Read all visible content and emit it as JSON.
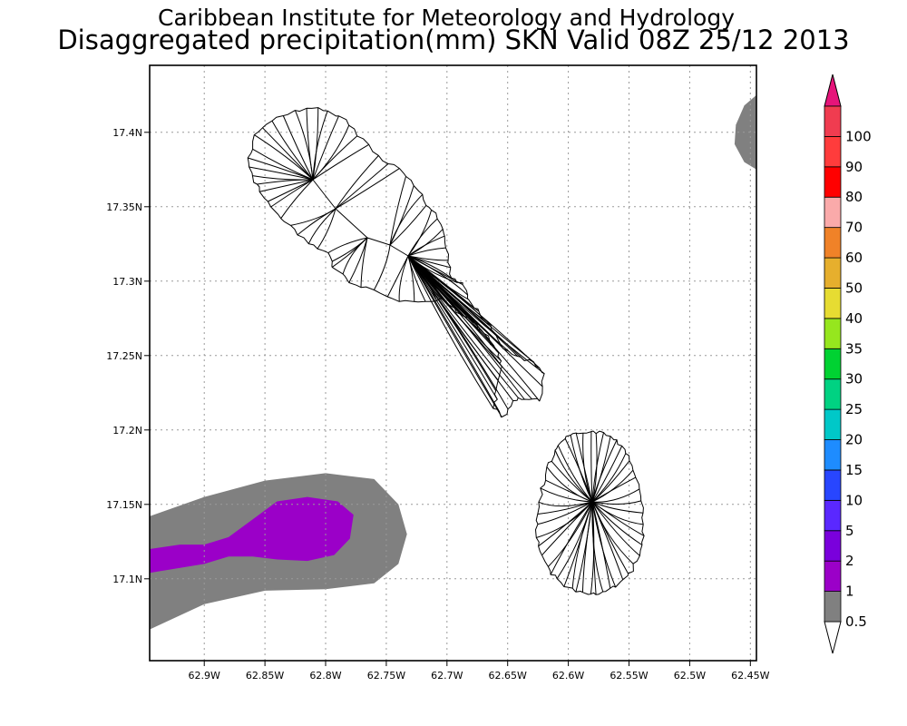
{
  "header": {
    "institute": "Caribbean Institute for Meteorology and Hydrology",
    "product": "Disaggregated precipitation(mm) SKN Valid 08Z 25/12 2013"
  },
  "map": {
    "lon_range": [
      -62.945,
      -62.445
    ],
    "lat_range": [
      17.045,
      17.445
    ],
    "lon_ticks": [
      {
        "value": -62.9,
        "label": "62.9W"
      },
      {
        "value": -62.85,
        "label": "62.85W"
      },
      {
        "value": -62.8,
        "label": "62.8W"
      },
      {
        "value": -62.75,
        "label": "62.75W"
      },
      {
        "value": -62.7,
        "label": "62.7W"
      },
      {
        "value": -62.65,
        "label": "62.65W"
      },
      {
        "value": -62.6,
        "label": "62.6W"
      },
      {
        "value": -62.55,
        "label": "62.55W"
      },
      {
        "value": -62.5,
        "label": "62.5W"
      },
      {
        "value": -62.45,
        "label": "62.45W"
      }
    ],
    "lat_ticks": [
      {
        "value": 17.1,
        "label": "17.1N"
      },
      {
        "value": 17.15,
        "label": "17.15N"
      },
      {
        "value": 17.2,
        "label": "17.2N"
      },
      {
        "value": 17.25,
        "label": "17.25N"
      },
      {
        "value": 17.3,
        "label": "17.3N"
      },
      {
        "value": 17.35,
        "label": "17.35N"
      },
      {
        "value": 17.4,
        "label": "17.4N"
      }
    ],
    "grid": true,
    "islands": [
      {
        "id": "st-kitts",
        "center": [
          -62.755,
          17.335
        ]
      },
      {
        "id": "nevis",
        "center": [
          -62.595,
          17.152
        ]
      }
    ],
    "precip_areas": [
      {
        "band": "0.5-1",
        "color": "#808080",
        "outline": [
          [
            -62.945,
            17.142
          ],
          [
            -62.9,
            17.155
          ],
          [
            -62.85,
            17.166
          ],
          [
            -62.8,
            17.171
          ],
          [
            -62.76,
            17.167
          ],
          [
            -62.74,
            17.15
          ],
          [
            -62.733,
            17.13
          ],
          [
            -62.74,
            17.11
          ],
          [
            -62.76,
            17.097
          ],
          [
            -62.8,
            17.093
          ],
          [
            -62.85,
            17.092
          ],
          [
            -62.9,
            17.083
          ],
          [
            -62.945,
            17.066
          ]
        ]
      },
      {
        "band": "0.5-1",
        "color": "#808080",
        "outline": [
          [
            -62.445,
            17.425
          ],
          [
            -62.455,
            17.418
          ],
          [
            -62.462,
            17.405
          ],
          [
            -62.463,
            17.392
          ],
          [
            -62.455,
            17.38
          ],
          [
            -62.445,
            17.375
          ]
        ]
      },
      {
        "band": "1-2",
        "color": "#9b00c8",
        "outline": [
          [
            -62.945,
            17.12
          ],
          [
            -62.92,
            17.123
          ],
          [
            -62.9,
            17.123
          ],
          [
            -62.88,
            17.128
          ],
          [
            -62.86,
            17.14
          ],
          [
            -62.84,
            17.152
          ],
          [
            -62.815,
            17.155
          ],
          [
            -62.79,
            17.152
          ],
          [
            -62.777,
            17.143
          ],
          [
            -62.78,
            17.127
          ],
          [
            -62.793,
            17.116
          ],
          [
            -62.815,
            17.112
          ],
          [
            -62.84,
            17.113
          ],
          [
            -62.86,
            17.115
          ],
          [
            -62.88,
            17.115
          ],
          [
            -62.9,
            17.11
          ],
          [
            -62.945,
            17.104
          ]
        ]
      }
    ]
  },
  "legend": {
    "levels": [
      {
        "label": "0.5",
        "color": "#808080"
      },
      {
        "label": "1",
        "color": "#9b00c8"
      },
      {
        "label": "2",
        "color": "#7a00dc"
      },
      {
        "label": "5",
        "color": "#5a28ff"
      },
      {
        "label": "10",
        "color": "#2846ff"
      },
      {
        "label": "15",
        "color": "#1e8cff"
      },
      {
        "label": "20",
        "color": "#00c8c8"
      },
      {
        "label": "25",
        "color": "#00d282"
      },
      {
        "label": "30",
        "color": "#00d232"
      },
      {
        "label": "35",
        "color": "#96e61e"
      },
      {
        "label": "40",
        "color": "#e6dc32"
      },
      {
        "label": "50",
        "color": "#e6af2d"
      },
      {
        "label": "60",
        "color": "#f08228"
      },
      {
        "label": "70",
        "color": "#faaaaa"
      },
      {
        "label": "80",
        "color": "#ff0000"
      },
      {
        "label": "90",
        "color": "#ff3c3c"
      },
      {
        "label": "100",
        "color": "#f03c50"
      }
    ],
    "over_color": "#e6147a",
    "under_color": "#ffffff"
  }
}
